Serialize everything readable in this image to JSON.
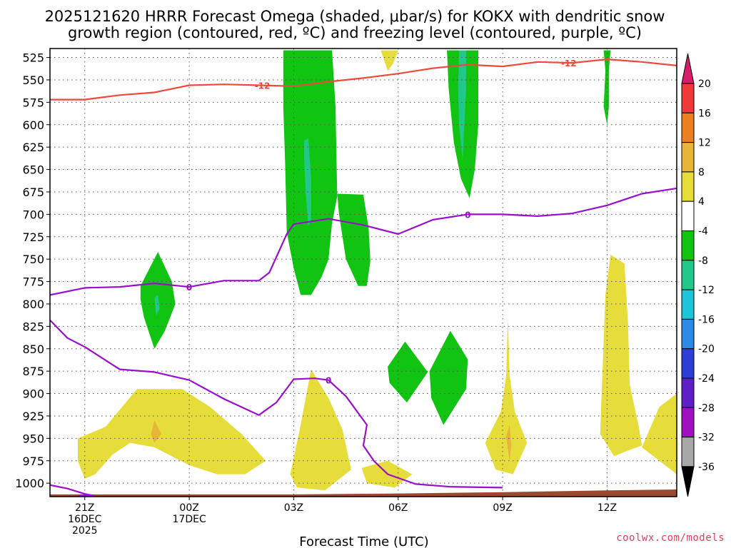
{
  "chart_data": {
    "type": "heatmap",
    "title_line1": "2025121620 HRRR Forecast Omega (shaded, μbar/s) for KOKX with dendritic snow",
    "title_line2": "growth region (contoured, red, ºC) and freezing level (contoured, purple, ºC)",
    "xlabel": "Forecast Time (UTC)",
    "credit": "coolwx.com/models",
    "x_range_hours": [
      -1,
      17
    ],
    "y_range_hpa": [
      515,
      1015
    ],
    "y_ticks": [
      525,
      550,
      575,
      600,
      625,
      650,
      675,
      700,
      725,
      750,
      775,
      800,
      825,
      850,
      875,
      900,
      925,
      950,
      975,
      1000
    ],
    "x_ticks": [
      {
        "hour": 0,
        "lines": [
          "21Z",
          "16DEC",
          "2025"
        ]
      },
      {
        "hour": 3,
        "lines": [
          "00Z",
          "17DEC"
        ]
      },
      {
        "hour": 6,
        "lines": [
          "03Z"
        ]
      },
      {
        "hour": 9,
        "lines": [
          "06Z"
        ]
      },
      {
        "hour": 12,
        "lines": [
          "09Z"
        ]
      },
      {
        "hour": 15,
        "lines": [
          "12Z"
        ]
      }
    ],
    "colorbar": {
      "labels": [
        "20",
        "16",
        "12",
        "8",
        "4",
        "-4",
        "-8",
        "-12",
        "-16",
        "-20",
        "-24",
        "-28",
        "-32",
        "-36"
      ],
      "colors": [
        "#d81b6a",
        "#ee3a3a",
        "#ee7e22",
        "#e6b53a",
        "#e7dd3a",
        "#ffffff",
        "#11c411",
        "#22c88a",
        "#1ec4d8",
        "#2c8ae6",
        "#2b3fd8",
        "#5e1fc4",
        "#a00fc0",
        "#a8a8a8",
        "#000000"
      ]
    },
    "contours": [
      {
        "name": "dendritic -12C",
        "label": "-12",
        "color": "#ee4a3c",
        "points": [
          [
            -1,
            572
          ],
          [
            0,
            572
          ],
          [
            1,
            567
          ],
          [
            2,
            564
          ],
          [
            3,
            556
          ],
          [
            4,
            555
          ],
          [
            5,
            556
          ],
          [
            6,
            557
          ],
          [
            7,
            552
          ],
          [
            8,
            548
          ],
          [
            9,
            543
          ],
          [
            10,
            537
          ],
          [
            11,
            533
          ],
          [
            12,
            535
          ],
          [
            13,
            530
          ],
          [
            14,
            531
          ],
          [
            15,
            527
          ],
          [
            16,
            530
          ],
          [
            17,
            534
          ]
        ]
      },
      {
        "name": "freezing level 0C upper",
        "label": "0",
        "color": "#9a0fcc",
        "points": [
          [
            -1,
            790
          ],
          [
            0,
            782
          ],
          [
            1,
            781
          ],
          [
            2,
            777
          ],
          [
            3,
            781
          ],
          [
            4,
            774
          ],
          [
            5,
            774
          ],
          [
            5.3,
            765
          ],
          [
            5.8,
            722
          ],
          [
            6,
            711
          ],
          [
            7,
            705
          ],
          [
            8,
            712
          ],
          [
            9,
            722
          ],
          [
            10,
            706
          ],
          [
            11,
            700
          ],
          [
            12,
            700
          ],
          [
            13,
            702
          ],
          [
            14,
            699
          ],
          [
            15,
            690
          ],
          [
            16,
            677
          ],
          [
            17,
            671
          ]
        ]
      },
      {
        "name": "freezing level 0C lower",
        "label": "0",
        "color": "#9a0fcc",
        "points": [
          [
            -1,
            818
          ],
          [
            -0.5,
            838
          ],
          [
            0,
            848
          ],
          [
            1,
            873
          ],
          [
            2,
            876
          ],
          [
            3,
            885
          ],
          [
            4,
            906
          ],
          [
            5,
            924
          ],
          [
            5.5,
            910
          ],
          [
            6,
            884
          ],
          [
            6.6,
            883
          ],
          [
            7,
            885
          ],
          [
            7.5,
            903
          ],
          [
            8.1,
            935
          ],
          [
            8,
            958
          ],
          [
            8.3,
            975
          ],
          [
            8.7,
            990
          ],
          [
            9.5,
            1001
          ],
          [
            10.5,
            1004
          ],
          [
            12,
            1005
          ]
        ]
      },
      {
        "name": "freezing level 0C surface sliver",
        "label": "",
        "color": "#9a0fcc",
        "points": [
          [
            -1,
            1002
          ],
          [
            -0.5,
            1006
          ],
          [
            0,
            1012
          ],
          [
            0.25,
            1014
          ],
          [
            -0.2,
            1014
          ]
        ]
      }
    ],
    "shaded_regions": [
      {
        "name": "ascent column 03Z-05Z",
        "category": "-8",
        "color": "#11c411",
        "points": [
          [
            5.7,
            517
          ],
          [
            7.1,
            517
          ],
          [
            7.2,
            580
          ],
          [
            7.25,
            680
          ],
          [
            7.1,
            710
          ],
          [
            7,
            750
          ],
          [
            6.8,
            770
          ],
          [
            6.5,
            790
          ],
          [
            6.2,
            790
          ],
          [
            6,
            760
          ],
          [
            5.8,
            720
          ],
          [
            5.75,
            640
          ],
          [
            5.7,
            580
          ]
        ]
      },
      {
        "name": "ascent cell 05Z-06Z",
        "category": "-8",
        "color": "#11c411",
        "points": [
          [
            7.25,
            677
          ],
          [
            8.0,
            678
          ],
          [
            8.15,
            715
          ],
          [
            8.2,
            752
          ],
          [
            8.1,
            780
          ],
          [
            7.85,
            780
          ],
          [
            7.5,
            750
          ],
          [
            7.3,
            700
          ]
        ]
      },
      {
        "name": "ascent core 04Z",
        "category": "-12",
        "color": "#22c88a",
        "points": [
          [
            6.3,
            618
          ],
          [
            6.42,
            615
          ],
          [
            6.5,
            660
          ],
          [
            6.5,
            706
          ],
          [
            6.42,
            713
          ],
          [
            6.35,
            680
          ],
          [
            6.3,
            640
          ]
        ]
      },
      {
        "name": "ascent column 09Z-10Z",
        "category": "-8",
        "color": "#11c411",
        "points": [
          [
            10.4,
            517
          ],
          [
            11.3,
            517
          ],
          [
            11.3,
            600
          ],
          [
            11.2,
            650
          ],
          [
            11.05,
            682
          ],
          [
            10.8,
            660
          ],
          [
            10.6,
            620
          ],
          [
            10.45,
            560
          ]
        ]
      },
      {
        "name": "ascent core 10Z",
        "category": "-12",
        "color": "#22c88a",
        "points": [
          [
            10.75,
            517
          ],
          [
            10.95,
            517
          ],
          [
            10.95,
            560
          ],
          [
            10.9,
            600
          ],
          [
            10.85,
            640
          ],
          [
            10.75,
            600
          ],
          [
            10.72,
            560
          ]
        ]
      },
      {
        "name": "ascent streak 12Z",
        "category": "-8",
        "color": "#11c411",
        "points": [
          [
            14.9,
            517
          ],
          [
            15.1,
            517
          ],
          [
            15.05,
            540
          ],
          [
            15.05,
            580
          ],
          [
            15,
            600
          ],
          [
            14.9,
            580
          ],
          [
            14.95,
            540
          ]
        ]
      },
      {
        "name": "ascent cell 22Z",
        "category": "-8",
        "color": "#11c411",
        "points": [
          [
            1.6,
            780
          ],
          [
            2.1,
            742
          ],
          [
            2.5,
            775
          ],
          [
            2.6,
            800
          ],
          [
            2.3,
            830
          ],
          [
            2.0,
            850
          ],
          [
            1.7,
            815
          ],
          [
            1.6,
            795
          ]
        ]
      },
      {
        "name": "ascent core 22Z",
        "category": "-12",
        "color": "#22c88a",
        "points": [
          [
            2.0,
            793
          ],
          [
            2.1,
            790
          ],
          [
            2.15,
            805
          ],
          [
            2.05,
            813
          ]
        ]
      },
      {
        "name": "ascent cell 07Z",
        "category": "-8",
        "color": "#11c411",
        "points": [
          [
            8.7,
            870
          ],
          [
            9.2,
            842
          ],
          [
            9.85,
            876
          ],
          [
            9.25,
            910
          ],
          [
            8.75,
            888
          ]
        ]
      },
      {
        "name": "ascent cell 08Z",
        "category": "-8",
        "color": "#11c411",
        "points": [
          [
            9.9,
            875
          ],
          [
            10.5,
            830
          ],
          [
            11.0,
            862
          ],
          [
            10.95,
            895
          ],
          [
            10.3,
            935
          ],
          [
            9.95,
            905
          ]
        ]
      },
      {
        "name": "descent low-level west",
        "category": "4",
        "color": "#e7dd3a",
        "points": [
          [
            -0.2,
            950
          ],
          [
            0.6,
            937
          ],
          [
            1.5,
            895
          ],
          [
            2.8,
            895
          ],
          [
            3.6,
            915
          ],
          [
            4.5,
            945
          ],
          [
            5.2,
            975
          ],
          [
            4.6,
            990
          ],
          [
            3.8,
            990
          ],
          [
            3,
            980
          ],
          [
            2,
            960
          ],
          [
            1.3,
            955
          ],
          [
            0.8,
            968
          ],
          [
            0.3,
            990
          ],
          [
            0,
            995
          ],
          [
            -0.2,
            975
          ]
        ]
      },
      {
        "name": "descent core 22Z",
        "category": "8",
        "color": "#e6b53a",
        "points": [
          [
            1.9,
            945
          ],
          [
            2.0,
            930
          ],
          [
            2.2,
            945
          ],
          [
            2.0,
            955
          ]
        ]
      },
      {
        "name": "descent plume 04Z",
        "category": "4",
        "color": "#e7dd3a",
        "points": [
          [
            5.9,
            990
          ],
          [
            6.2,
            935
          ],
          [
            6.5,
            873
          ],
          [
            7.0,
            905
          ],
          [
            7.4,
            940
          ],
          [
            7.65,
            985
          ],
          [
            6.9,
            1008
          ],
          [
            6.1,
            1005
          ]
        ]
      },
      {
        "name": "descent blob 06Z",
        "category": "4",
        "color": "#e7dd3a",
        "points": [
          [
            7.95,
            983
          ],
          [
            8.7,
            975
          ],
          [
            9.4,
            990
          ],
          [
            8.9,
            1005
          ],
          [
            8.1,
            1000
          ]
        ]
      },
      {
        "name": "descent spike 09Z-10Z",
        "category": "4",
        "color": "#e7dd3a",
        "points": [
          [
            11.5,
            955
          ],
          [
            11.95,
            920
          ],
          [
            12.1,
            880
          ],
          [
            12.15,
            815
          ],
          [
            12.2,
            880
          ],
          [
            12.35,
            920
          ],
          [
            12.7,
            955
          ],
          [
            12.3,
            990
          ],
          [
            11.8,
            985
          ]
        ]
      },
      {
        "name": "descent core 10Z",
        "category": "8",
        "color": "#e6b53a",
        "points": [
          [
            12.1,
            948
          ],
          [
            12.2,
            935
          ],
          [
            12.25,
            958
          ],
          [
            12.2,
            975
          ]
        ]
      },
      {
        "name": "descent column 12Z-13Z",
        "category": "4",
        "color": "#e7dd3a",
        "points": [
          [
            14.8,
            945
          ],
          [
            14.95,
            790
          ],
          [
            15.1,
            745
          ],
          [
            15.5,
            755
          ],
          [
            15.6,
            820
          ],
          [
            15.65,
            890
          ],
          [
            15.9,
            935
          ],
          [
            16.0,
            958
          ],
          [
            15.5,
            965
          ],
          [
            15.2,
            970
          ]
        ]
      },
      {
        "name": "descent east edge",
        "category": "4",
        "color": "#e7dd3a",
        "points": [
          [
            16.0,
            960
          ],
          [
            16.5,
            915
          ],
          [
            17,
            900
          ],
          [
            17,
            990
          ],
          [
            16.5,
            975
          ]
        ]
      },
      {
        "name": "descent sliver 03Z top",
        "category": "4",
        "color": "#e7dd3a",
        "points": [
          [
            8.5,
            517
          ],
          [
            9.0,
            517
          ],
          [
            8.85,
            532
          ],
          [
            8.7,
            540
          ]
        ]
      }
    ]
  }
}
